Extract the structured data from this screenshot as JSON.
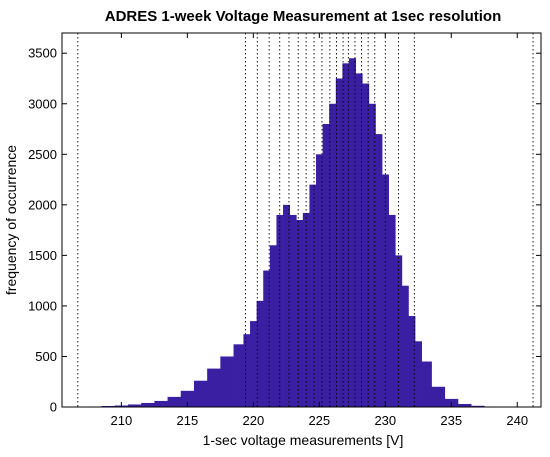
{
  "chart_data": {
    "type": "bar",
    "title": "ADRES 1-week Voltage Measurement at 1sec resolution",
    "xlabel": "1-sec voltage measurements [V]",
    "ylabel": "frequency of occurrence",
    "xlim": [
      205.5,
      241.8
    ],
    "ylim": [
      0,
      3700
    ],
    "xticks": [
      210,
      215,
      220,
      225,
      230,
      235,
      240
    ],
    "yticks": [
      0,
      500,
      1000,
      1500,
      2000,
      2500,
      3000,
      3500
    ],
    "grid": false,
    "histogram": {
      "x": [
        206,
        207,
        208,
        209,
        210,
        211,
        212,
        213,
        214,
        215,
        216,
        217,
        218,
        219,
        219.5,
        220,
        220.5,
        221,
        221.5,
        222,
        222.5,
        223,
        223.5,
        224,
        224.5,
        225,
        225.5,
        226,
        226.5,
        227,
        227.5,
        228,
        228.5,
        229,
        229.5,
        230,
        230.5,
        231,
        231.5,
        232,
        232.5,
        233,
        234,
        235,
        236,
        237,
        238,
        239,
        240
      ],
      "values": [
        0,
        2,
        5,
        10,
        15,
        25,
        40,
        60,
        100,
        160,
        260,
        380,
        500,
        620,
        720,
        850,
        1050,
        1350,
        1600,
        1900,
        2000,
        1900,
        1850,
        1920,
        2200,
        2500,
        2800,
        3000,
        3250,
        3400,
        3450,
        3300,
        3200,
        3000,
        2700,
        2300,
        1900,
        1500,
        1200,
        900,
        650,
        450,
        200,
        80,
        30,
        12,
        5,
        2,
        0
      ]
    },
    "reference_lines_x": [
      206.7,
      219.4,
      220.3,
      221.2,
      222.0,
      222.7,
      223.4,
      224.0,
      224.6,
      225.2,
      225.8,
      226.3,
      226.8,
      227.2,
      227.7,
      228.2,
      228.7,
      229.2,
      230.0,
      231.0,
      232.2,
      241.2
    ]
  }
}
